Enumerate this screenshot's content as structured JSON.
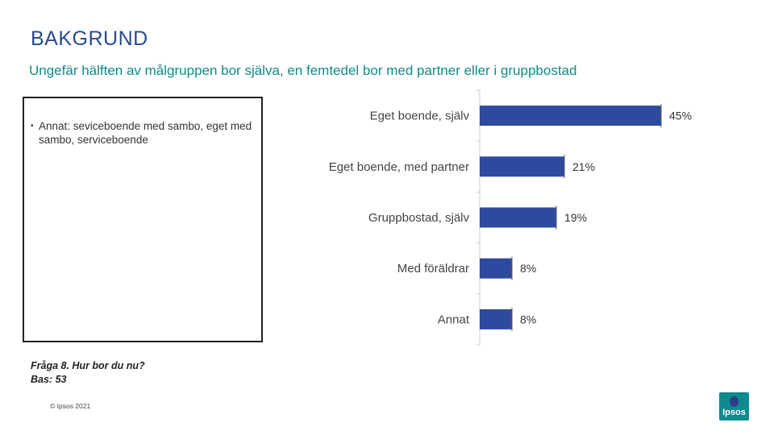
{
  "header": {
    "title": "BAKGRUND",
    "subtitle": "Ungefär hälften av målgruppen bor själva, en femtedel bor med partner eller i gruppbostad"
  },
  "note": {
    "bullet": "•",
    "text": "Annat: seviceboende med sambo, eget med sambo, serviceboende"
  },
  "question": {
    "line1": "Fråga 8. Hur bor du nu?",
    "line2": "Bas: 53"
  },
  "footer": {
    "copyright": "© Ipsos 2021",
    "logo_text": "Ipsos"
  },
  "colors": {
    "bar": "#2e4a9e",
    "brand": "#0f8a8e",
    "title": "#2a4a8c",
    "subtitle": "#0e8b8b"
  },
  "chart_data": {
    "type": "bar",
    "orientation": "horizontal",
    "categories": [
      "Eget boende, själv",
      "Eget boende, med partner",
      "Gruppbostad, själv",
      "Med föräldrar",
      "Annat"
    ],
    "values": [
      45,
      21,
      19,
      8,
      8
    ],
    "value_labels": [
      "45%",
      "21%",
      "19%",
      "8%",
      "8%"
    ],
    "unit": "%",
    "xlim": [
      0,
      50
    ],
    "grid": false,
    "legend": "none"
  }
}
